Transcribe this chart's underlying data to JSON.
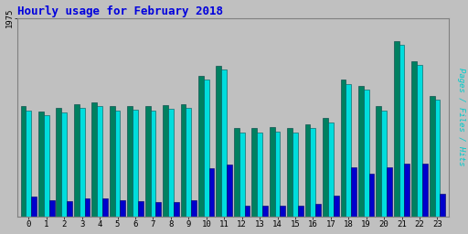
{
  "title": "Hourly usage for February 2018",
  "title_color": "#0000dd",
  "title_fontsize": 9,
  "hours": [
    0,
    1,
    2,
    3,
    4,
    5,
    6,
    7,
    8,
    9,
    10,
    11,
    12,
    13,
    14,
    15,
    16,
    17,
    18,
    19,
    20,
    21,
    22,
    23
  ],
  "pages": [
    1100,
    1050,
    1080,
    1120,
    1140,
    1100,
    1105,
    1100,
    1110,
    1120,
    1400,
    1500,
    880,
    880,
    890,
    880,
    920,
    980,
    1360,
    1300,
    1100,
    1750,
    1550,
    1200
  ],
  "files": [
    1060,
    1010,
    1040,
    1080,
    1100,
    1060,
    1065,
    1060,
    1070,
    1080,
    1360,
    1460,
    840,
    840,
    850,
    840,
    880,
    940,
    1320,
    1260,
    1060,
    1710,
    1510,
    1160
  ],
  "hits": [
    200,
    170,
    160,
    180,
    185,
    165,
    160,
    150,
    150,
    165,
    480,
    520,
    115,
    110,
    115,
    110,
    130,
    210,
    490,
    430,
    490,
    530,
    530,
    230
  ],
  "ylim": [
    0,
    1975
  ],
  "ytick_val": 1975,
  "ytick_label": "1975",
  "bar_width": 0.3,
  "color_pages": "#008060",
  "color_files": "#00dddd",
  "color_hits": "#0000cc",
  "bg_color": "#c0c0c0",
  "plot_bg": "#c0c0c0",
  "border_color": "#808080",
  "figsize": [
    5.12,
    2.56
  ],
  "dpi": 100
}
